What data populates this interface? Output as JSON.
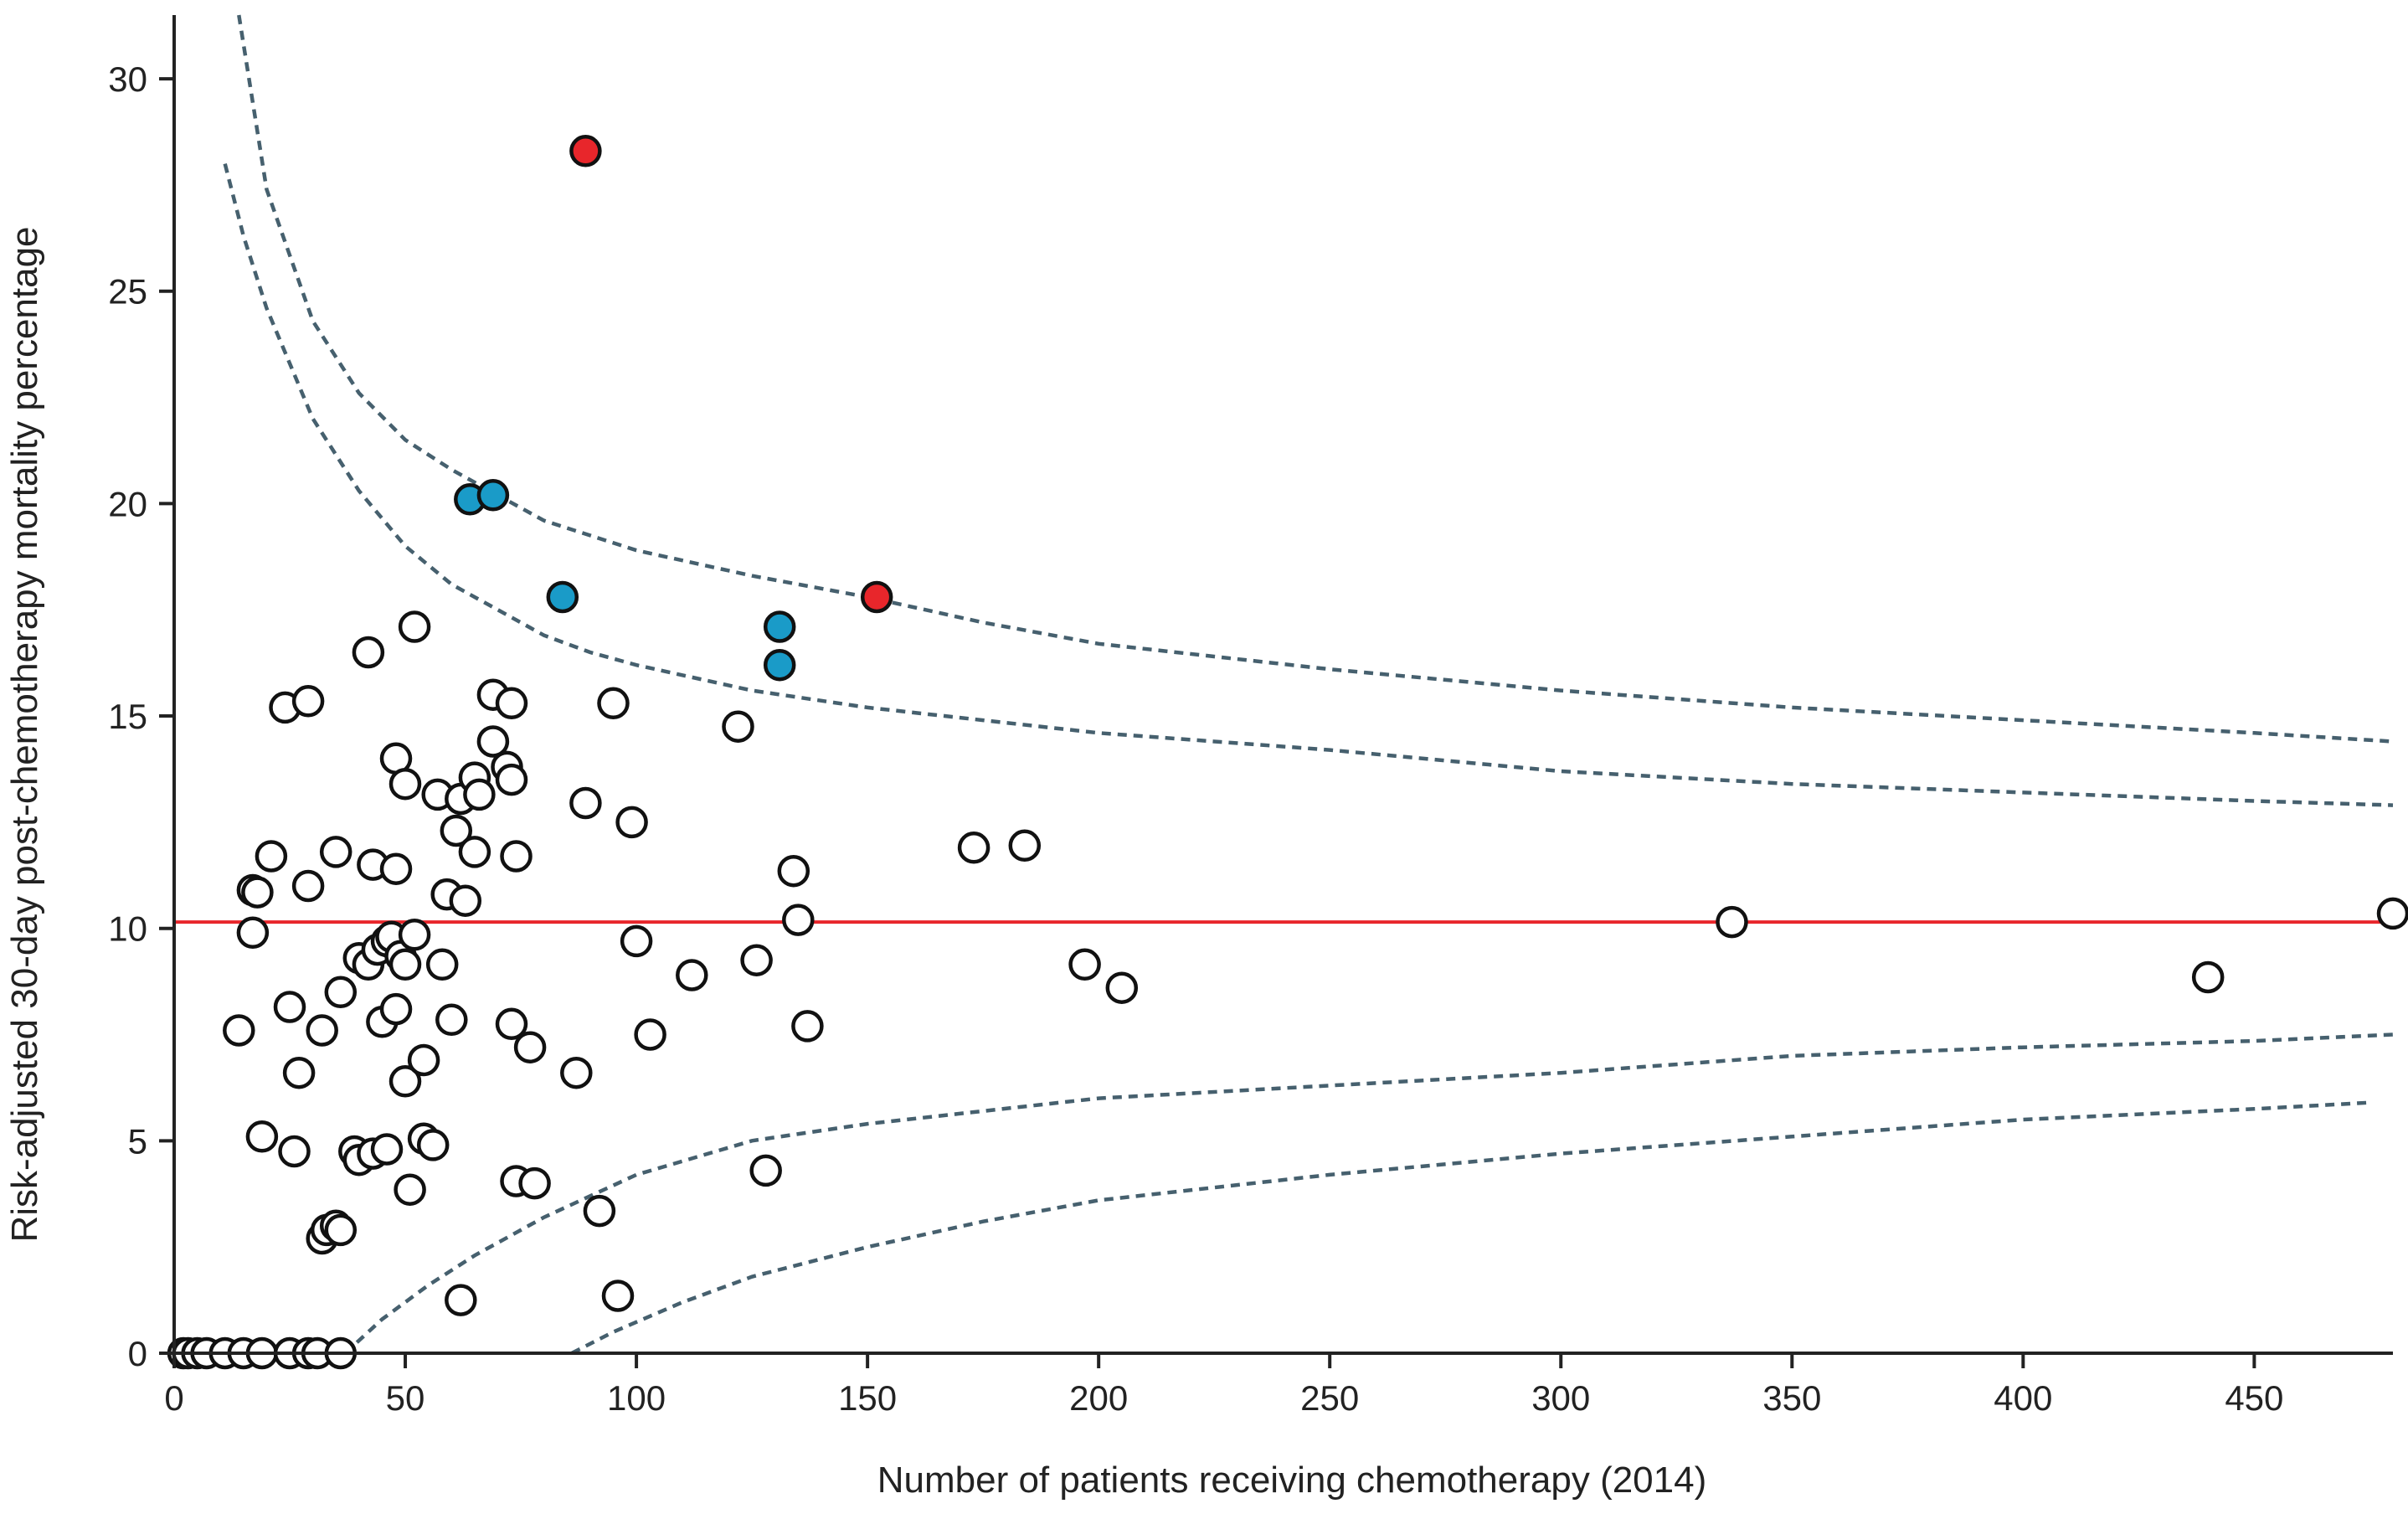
{
  "chart_data": {
    "type": "scatter",
    "xlabel": "Number of patients receiving chemotherapy (2014)",
    "ylabel": "Risk-adjusted 30-day post-chemotherapy mortality percentage",
    "xlim": [
      0,
      480
    ],
    "ylim": [
      0,
      31.5
    ],
    "x_ticks": [
      0,
      50,
      100,
      150,
      200,
      250,
      300,
      350,
      400,
      450
    ],
    "y_ticks": [
      0,
      5,
      10,
      15,
      20,
      25,
      30
    ],
    "grid": false,
    "reference_line": {
      "y": 10.15,
      "color": "#e8262b"
    },
    "control_limits": {
      "color": "#46606e",
      "upper_outer": [
        [
          14,
          31.5
        ],
        [
          20,
          27.4
        ],
        [
          30,
          24.3
        ],
        [
          40,
          22.6
        ],
        [
          50,
          21.5
        ],
        [
          60,
          20.8
        ],
        [
          70,
          20.2
        ],
        [
          80,
          19.6
        ],
        [
          100,
          18.9
        ],
        [
          125,
          18.3
        ],
        [
          150,
          17.8
        ],
        [
          175,
          17.2
        ],
        [
          200,
          16.7
        ],
        [
          250,
          16.1
        ],
        [
          300,
          15.6
        ],
        [
          350,
          15.2
        ],
        [
          400,
          14.9
        ],
        [
          450,
          14.6
        ],
        [
          480,
          14.4
        ]
      ],
      "upper_inner": [
        [
          11,
          28.0
        ],
        [
          15,
          26.3
        ],
        [
          20,
          24.6
        ],
        [
          30,
          22.0
        ],
        [
          40,
          20.3
        ],
        [
          50,
          19.0
        ],
        [
          60,
          18.1
        ],
        [
          70,
          17.5
        ],
        [
          80,
          16.9
        ],
        [
          90,
          16.5
        ],
        [
          100,
          16.2
        ],
        [
          125,
          15.6
        ],
        [
          150,
          15.2
        ],
        [
          175,
          14.9
        ],
        [
          200,
          14.6
        ],
        [
          250,
          14.2
        ],
        [
          300,
          13.7
        ],
        [
          350,
          13.4
        ],
        [
          400,
          13.2
        ],
        [
          450,
          13.0
        ],
        [
          480,
          12.9
        ]
      ],
      "lower_inner": [
        [
          37,
          0
        ],
        [
          45,
          0.8
        ],
        [
          55,
          1.6
        ],
        [
          65,
          2.3
        ],
        [
          80,
          3.2
        ],
        [
          100,
          4.2
        ],
        [
          125,
          5.0
        ],
        [
          150,
          5.4
        ],
        [
          200,
          6.0
        ],
        [
          250,
          6.3
        ],
        [
          300,
          6.6
        ],
        [
          350,
          7.0
        ],
        [
          400,
          7.2
        ],
        [
          450,
          7.35
        ],
        [
          480,
          7.5
        ]
      ],
      "lower_outer": [
        [
          86,
          0
        ],
        [
          95,
          0.5
        ],
        [
          110,
          1.2
        ],
        [
          125,
          1.8
        ],
        [
          150,
          2.5
        ],
        [
          175,
          3.1
        ],
        [
          200,
          3.6
        ],
        [
          250,
          4.2
        ],
        [
          300,
          4.7
        ],
        [
          350,
          5.1
        ],
        [
          400,
          5.5
        ],
        [
          450,
          5.75
        ],
        [
          475,
          5.9
        ]
      ]
    },
    "series": [
      {
        "fill": "#ffffff",
        "points": [
          [
            2,
            0
          ],
          [
            3,
            0
          ],
          [
            5,
            0
          ],
          [
            7,
            0
          ],
          [
            11,
            0
          ],
          [
            15,
            0
          ],
          [
            19,
            0
          ],
          [
            25,
            0
          ],
          [
            29,
            0
          ],
          [
            31,
            0
          ],
          [
            36,
            0
          ],
          [
            14,
            7.6
          ],
          [
            17,
            10.9
          ],
          [
            18,
            10.85
          ],
          [
            17,
            9.9
          ],
          [
            19,
            5.1
          ],
          [
            21,
            11.7
          ],
          [
            24,
            15.2
          ],
          [
            25,
            8.15
          ],
          [
            26,
            4.75
          ],
          [
            27,
            6.6
          ],
          [
            29,
            15.35
          ],
          [
            29,
            11.0
          ],
          [
            32,
            2.7
          ],
          [
            32,
            7.6
          ],
          [
            33,
            2.9
          ],
          [
            35,
            11.8
          ],
          [
            35,
            3.0
          ],
          [
            36,
            8.5
          ],
          [
            36,
            2.9
          ],
          [
            39,
            4.75
          ],
          [
            40,
            4.55
          ],
          [
            40,
            9.3
          ],
          [
            42,
            16.5
          ],
          [
            42,
            9.15
          ],
          [
            43,
            11.5
          ],
          [
            43,
            4.7
          ],
          [
            44,
            9.5
          ],
          [
            45,
            7.8
          ],
          [
            46,
            9.7
          ],
          [
            46,
            4.8
          ],
          [
            47,
            9.8
          ],
          [
            48,
            14.0
          ],
          [
            48,
            11.4
          ],
          [
            48,
            8.1
          ],
          [
            49,
            9.35
          ],
          [
            50,
            13.4
          ],
          [
            50,
            6.4
          ],
          [
            50,
            9.15
          ],
          [
            51,
            3.85
          ],
          [
            52,
            17.1
          ],
          [
            52,
            9.85
          ],
          [
            54,
            6.9
          ],
          [
            54,
            5.05
          ],
          [
            56,
            4.9
          ],
          [
            57,
            13.15
          ],
          [
            58,
            9.15
          ],
          [
            59,
            10.8
          ],
          [
            60,
            7.85
          ],
          [
            61,
            12.3
          ],
          [
            62,
            1.25
          ],
          [
            62,
            13.05
          ],
          [
            63,
            10.65
          ],
          [
            65,
            11.8
          ],
          [
            65,
            13.55
          ],
          [
            66,
            13.15
          ],
          [
            69,
            15.5
          ],
          [
            69,
            14.4
          ],
          [
            72,
            13.8
          ],
          [
            73,
            13.5
          ],
          [
            73,
            15.3
          ],
          [
            73,
            7.75
          ],
          [
            74,
            4.05
          ],
          [
            74,
            11.7
          ],
          [
            77,
            7.2
          ],
          [
            78,
            4.0
          ],
          [
            87,
            6.6
          ],
          [
            89,
            12.95
          ],
          [
            92,
            3.35
          ],
          [
            95,
            15.3
          ],
          [
            96,
            1.35
          ],
          [
            99,
            12.5
          ],
          [
            100,
            9.7
          ],
          [
            103,
            7.5
          ],
          [
            112,
            8.9
          ],
          [
            122,
            14.75
          ],
          [
            126,
            9.25
          ],
          [
            128,
            4.3
          ],
          [
            134,
            11.35
          ],
          [
            135,
            10.2
          ],
          [
            137,
            7.7
          ],
          [
            173,
            11.9
          ],
          [
            184,
            11.95
          ],
          [
            197,
            9.15
          ],
          [
            205,
            8.6
          ],
          [
            337,
            10.15
          ],
          [
            440,
            8.85
          ],
          [
            480,
            10.35
          ]
        ]
      },
      {
        "fill": "#1a9bc8",
        "points": [
          [
            64,
            20.1
          ],
          [
            69,
            20.2
          ],
          [
            84,
            17.8
          ],
          [
            131,
            17.1
          ],
          [
            131,
            16.2
          ]
        ]
      },
      {
        "fill": "#e8262b",
        "points": [
          [
            89,
            28.3
          ],
          [
            152,
            17.8
          ]
        ]
      }
    ]
  }
}
